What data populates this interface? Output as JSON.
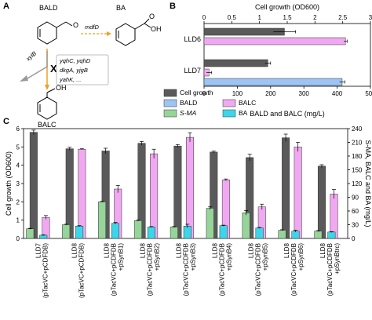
{
  "panel_a": {
    "label": "A",
    "molecules": {
      "bald": "BALD",
      "ba": "BA",
      "balc": "BALC"
    },
    "genes": {
      "mdfD": "mdfD",
      "xylB": "xylB",
      "list_line1": "yqhC, yqhD",
      "list_line2": "dkgA, yjgB",
      "list_line3": "yahK, ..."
    },
    "knockout_mark": "X",
    "colors": {
      "xylB": "#f0a020",
      "knockout": "#e02020",
      "mdfD_arrow": "#f0a020"
    }
  },
  "panel_b_label": "B",
  "panel_c_label": "C",
  "legend": {
    "items": [
      {
        "label": "Cell growth",
        "color": "#5a5a5a"
      },
      {
        "label": "BALC",
        "color": "#f0a8f0"
      },
      {
        "label": "BALD",
        "color": "#9cc4f4"
      },
      {
        "label": "S-MA",
        "color": "#96d49a"
      },
      {
        "label": "BA",
        "color": "#3cd6ea"
      }
    ]
  },
  "chart_data": [
    {
      "type": "bar",
      "orientation": "horizontal",
      "categories": [
        "LLD6",
        "LLD7"
      ],
      "top_axis": {
        "label": "Cell growth (OD600)",
        "range": [
          0,
          3
        ],
        "ticks": [
          0,
          0.5,
          1.0,
          1.5,
          2.0,
          2.5,
          3.0
        ]
      },
      "bottom_axis": {
        "label": "BALD and BALC (mg/L)",
        "range": [
          0,
          500
        ],
        "ticks": [
          0,
          100,
          200,
          300,
          400,
          500
        ]
      },
      "series": [
        {
          "name": "Cell growth",
          "axis": "top",
          "values": [
            1.45,
            1.15
          ],
          "errors": [
            0.2,
            0.05
          ]
        },
        {
          "name": "BALC",
          "axis": "bottom",
          "values": [
            425,
            15
          ],
          "errors": [
            5,
            8
          ]
        },
        {
          "name": "BALD",
          "axis": "bottom",
          "values": [
            0,
            415
          ],
          "errors": [
            0,
            8
          ]
        }
      ]
    },
    {
      "type": "bar",
      "categories": [
        "LLD7\n(pTacVC+pCDFDB)",
        "LLD8\n(pTacVC+pCDFDB)",
        "LLD8\n(pTacVC+pCDFDB\n+pSynB1)",
        "LLD8\n(pTacVC+pCDFDB\n+pSynB2)",
        "LLD8\n(pTacVC+pCDFDB\n+pSynB3)",
        "LLD8\n(pTacVC+pCDFDB\n+pSynB4)",
        "LLD8\n(pTacVC+pCDFDB\n+pSynB5)",
        "LLD8\n(pTacVC+pCDFDB\n+pSynB6)",
        "LLD8\n(pTacVC+pCDFDB\n+pSynBtrc)"
      ],
      "ylabel": "Cell growth (OD600)",
      "y2label": "S-MA, BALC and BA (mg/L)",
      "ylim": [
        0,
        6
      ],
      "y2lim": [
        0,
        240
      ],
      "y_ticks": [
        0,
        1,
        2,
        3,
        4,
        5,
        6
      ],
      "y2_ticks": [
        0,
        30,
        60,
        90,
        120,
        150,
        180,
        210,
        240
      ],
      "series": [
        {
          "name": "Cell growth",
          "axis": "left",
          "values": [
            5.8,
            4.9,
            4.78,
            5.2,
            5.05,
            4.72,
            4.42,
            5.5,
            3.95
          ],
          "errors": [
            0.12,
            0.08,
            0.15,
            0.1,
            0.08,
            0.05,
            0.18,
            0.2,
            0.08
          ]
        },
        {
          "name": "S-MA",
          "axis": "right",
          "values": [
            21,
            30,
            80,
            39,
            25,
            66,
            56,
            18,
            16
          ],
          "errors": [
            1,
            1,
            1,
            1,
            1,
            3,
            5,
            1,
            1
          ]
        },
        {
          "name": "BALC",
          "axis": "right",
          "values": [
            46,
            195,
            108,
            185,
            221,
            128,
            69,
            200,
            97
          ],
          "errors": [
            4,
            1,
            8,
            10,
            10,
            2,
            6,
            10,
            10
          ]
        },
        {
          "name": "BA",
          "axis": "right",
          "values": [
            7,
            27,
            33,
            25,
            27,
            28,
            23,
            16,
            14
          ],
          "errors": [
            1,
            1,
            2,
            1,
            4,
            1,
            1,
            2,
            1
          ]
        }
      ]
    }
  ]
}
